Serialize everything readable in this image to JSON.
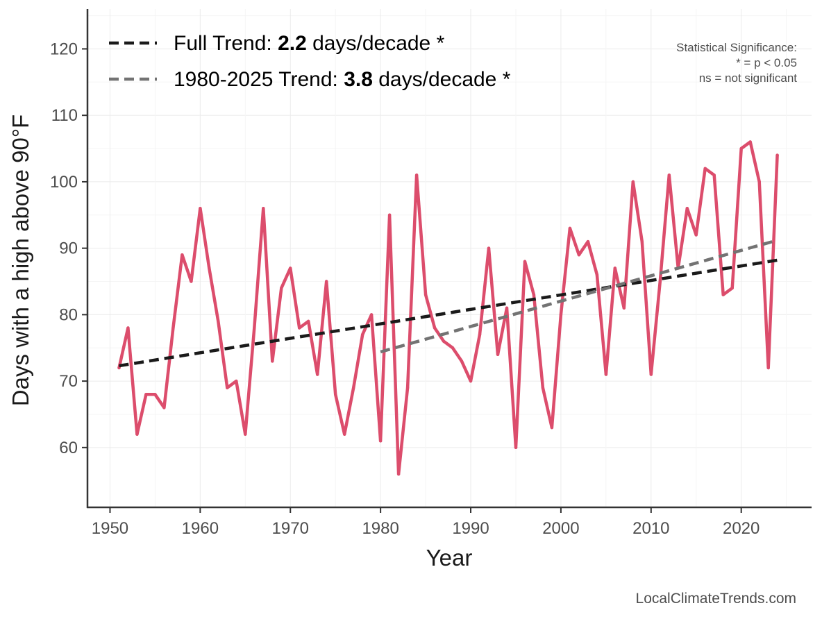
{
  "chart_data": {
    "type": "line",
    "xlabel": "Year",
    "ylabel": "Days with a high above 90°F",
    "xlim": [
      1947.5,
      2027.8
    ],
    "ylim": [
      51,
      126
    ],
    "xticks": [
      1950,
      1960,
      1970,
      1980,
      1990,
      2000,
      2010,
      2020
    ],
    "yticks": [
      60,
      70,
      80,
      90,
      100,
      110,
      120
    ],
    "grid": true,
    "series": [
      {
        "name": "Annual days above 90°F",
        "color": "#dc4d6c",
        "x": [
          1951,
          1952,
          1953,
          1954,
          1955,
          1956,
          1957,
          1958,
          1959,
          1960,
          1961,
          1962,
          1963,
          1964,
          1965,
          1966,
          1967,
          1968,
          1969,
          1970,
          1971,
          1972,
          1973,
          1974,
          1975,
          1976,
          1977,
          1978,
          1979,
          1980,
          1981,
          1982,
          1983,
          1984,
          1985,
          1986,
          1987,
          1988,
          1989,
          1990,
          1991,
          1992,
          1993,
          1994,
          1995,
          1996,
          1997,
          1998,
          1999,
          2000,
          2001,
          2002,
          2003,
          2004,
          2005,
          2006,
          2007,
          2008,
          2009,
          2010,
          2011,
          2012,
          2013,
          2014,
          2015,
          2016,
          2017,
          2018,
          2019,
          2020,
          2021,
          2022,
          2023,
          2024
        ],
        "values": [
          72,
          78,
          62,
          68,
          68,
          66,
          78,
          89,
          85,
          96,
          87,
          79,
          69,
          70,
          62,
          78,
          96,
          73,
          84,
          87,
          78,
          79,
          71,
          85,
          68,
          62,
          69,
          77,
          80,
          61,
          95,
          56,
          69,
          101,
          83,
          78,
          76,
          75,
          73,
          70,
          77,
          90,
          74,
          81,
          60,
          88,
          83,
          69,
          63,
          80,
          93,
          89,
          91,
          86,
          71,
          87,
          81,
          100,
          91,
          71,
          85,
          101,
          87,
          96,
          92,
          102,
          101,
          83,
          84,
          105,
          106,
          100,
          72,
          104
        ]
      }
    ],
    "trends": [
      {
        "name": "Full Trend",
        "start": [
          1951,
          72.3
        ],
        "end": [
          2024,
          88.2
        ],
        "color": "#1a1a1a"
      },
      {
        "name": "1980-2025 Trend",
        "start": [
          1980,
          74.4
        ],
        "end": [
          2024,
          91.2
        ],
        "color": "#737373"
      }
    ],
    "legend": {
      "position": "top-left",
      "items": [
        {
          "prefix": "Full Trend: ",
          "value": "2.2",
          "suffix": " days/decade *"
        },
        {
          "prefix": "1980-2025 Trend: ",
          "value": "3.8",
          "suffix": " days/decade *"
        }
      ]
    },
    "significance_note": {
      "title": "Statistical Significance:",
      "line1": "* = p < 0.05",
      "line2": "ns = not significant"
    },
    "source": "LocalClimateTrends.com"
  }
}
